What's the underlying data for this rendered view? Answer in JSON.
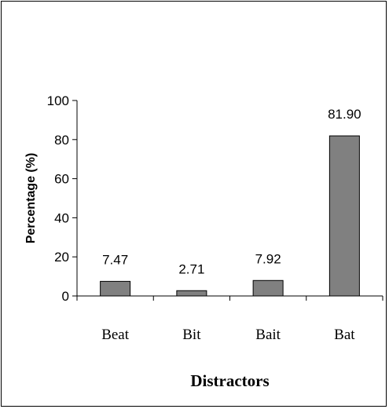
{
  "chart_data": {
    "type": "bar",
    "categories": [
      "Beat",
      "Bit",
      "Bait",
      "Bat"
    ],
    "values": [
      7.47,
      2.71,
      7.92,
      81.9
    ],
    "value_labels": [
      "7.47",
      "2.71",
      "7.92",
      "81.90"
    ],
    "xlabel": "Distractors",
    "ylabel": "Percentage (%)",
    "ylim": [
      0,
      100
    ],
    "yticks": [
      0,
      20,
      40,
      60,
      80,
      100
    ],
    "ytick_labels": [
      "0",
      "20",
      "40",
      "60",
      "80",
      "100"
    ],
    "grid": false,
    "legend": "none",
    "colors": {
      "bar_fill": "#808080",
      "bar_stroke": "#000000",
      "axis": "#000000"
    }
  }
}
